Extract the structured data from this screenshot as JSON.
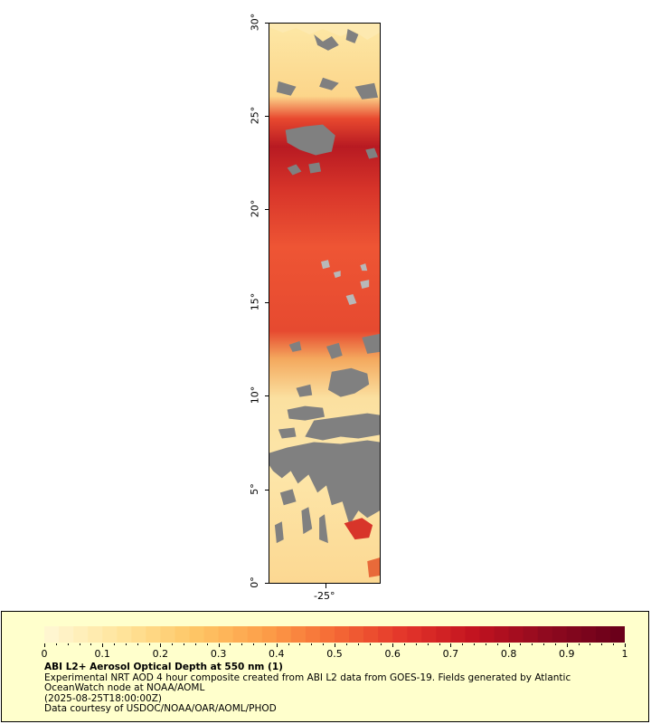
{
  "map": {
    "lat_ticks": [
      "0°",
      "5°",
      "10°",
      "15°",
      "20°",
      "25°",
      "30°"
    ],
    "lon_ticks": [
      "-25°"
    ],
    "no_data_color": "#808080"
  },
  "legend": {
    "colorbar_ticks": [
      "0",
      "0.1",
      "0.2",
      "0.3",
      "0.4",
      "0.5",
      "0.6",
      "0.7",
      "0.8",
      "0.9",
      "1"
    ],
    "colorscale": [
      "#fff6d0",
      "#ffe49a",
      "#fec766",
      "#fd9f49",
      "#f56a35",
      "#e3342a",
      "#c1121f",
      "#8f0a1f",
      "#6b001a"
    ],
    "title": "ABI L2+ Aerosol Optical Depth at 550 nm (1)",
    "lines": [
      "Experimental NRT AOD 4 hour composite created from ABI L2 data from GOES-19. Fields generated by Atlantic",
      "OceanWatch node at NOAA/AOML",
      "(2025-08-25T18:00:00Z)",
      "Data courtesy of USDOC/NOAA/OAR/AOML/PHOD"
    ]
  }
}
